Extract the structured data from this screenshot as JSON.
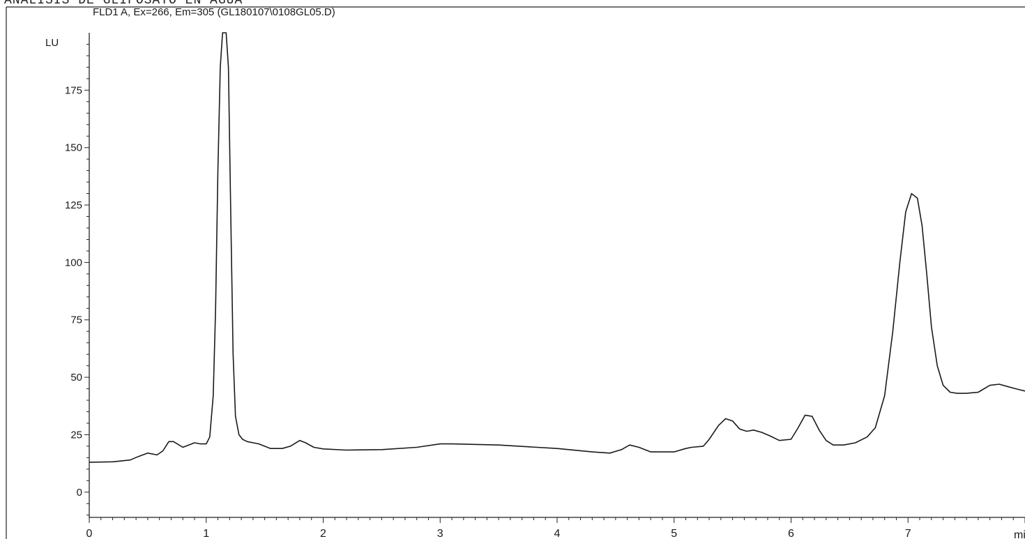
{
  "page_heading": "ANALISIS DE GLIFOSATO EN AGUA",
  "chart_data": {
    "type": "line",
    "title": "FLD1 A, Ex=266, Em=305 (GL180107\\0108GL05.D)",
    "ylabel": "LU",
    "xlabel": "min",
    "xlim": [
      0,
      8.0
    ],
    "ylim": [
      -11,
      200
    ],
    "xticks": [
      0,
      1,
      2,
      3,
      4,
      5,
      6,
      7
    ],
    "yticks": [
      0,
      25,
      50,
      75,
      100,
      125,
      150,
      175
    ],
    "grid": false,
    "series": [
      {
        "color": "#1a1a1a",
        "x": [
          0.0,
          0.2,
          0.35,
          0.42,
          0.5,
          0.58,
          0.63,
          0.68,
          0.72,
          0.8,
          0.85,
          0.9,
          0.95,
          1.0,
          1.03,
          1.06,
          1.08,
          1.1,
          1.12,
          1.14,
          1.17,
          1.19,
          1.21,
          1.23,
          1.25,
          1.28,
          1.31,
          1.35,
          1.45,
          1.55,
          1.65,
          1.72,
          1.8,
          1.85,
          1.92,
          2.0,
          2.2,
          2.5,
          2.8,
          3.0,
          3.1,
          3.5,
          4.0,
          4.3,
          4.45,
          4.55,
          4.62,
          4.7,
          4.8,
          5.0,
          5.1,
          5.15,
          5.25,
          5.3,
          5.38,
          5.44,
          5.5,
          5.56,
          5.62,
          5.68,
          5.75,
          5.82,
          5.9,
          6.0,
          6.06,
          6.12,
          6.18,
          6.24,
          6.3,
          6.36,
          6.45,
          6.55,
          6.65,
          6.72,
          6.8,
          6.87,
          6.93,
          6.98,
          7.03,
          7.08,
          7.12,
          7.16,
          7.2,
          7.25,
          7.3,
          7.36,
          7.42,
          7.5,
          7.6,
          7.7,
          7.78,
          7.85,
          7.92,
          8.0
        ],
        "y": [
          13,
          13.2,
          14,
          15.5,
          17,
          16.2,
          18,
          22,
          22,
          19.5,
          20.5,
          21.5,
          21,
          21,
          24,
          42,
          80,
          140,
          185,
          200,
          200,
          185,
          120,
          60,
          33,
          25,
          23,
          22,
          21,
          19,
          19,
          20,
          22.5,
          21.5,
          19.5,
          18.8,
          18.3,
          18.5,
          19.5,
          21,
          21,
          20.5,
          19,
          17.5,
          17,
          18.5,
          20.5,
          19.5,
          17.5,
          17.5,
          19,
          19.5,
          20,
          23,
          29,
          32,
          31,
          27.5,
          26.5,
          27,
          26,
          24.5,
          22.5,
          23,
          28,
          33.5,
          33,
          27,
          22.5,
          20.5,
          20.5,
          21.5,
          24,
          28,
          42,
          70,
          100,
          122,
          130,
          128,
          116,
          95,
          72,
          55,
          46.5,
          43.5,
          43,
          43,
          43.5,
          46.5,
          47,
          46,
          45,
          44
        ]
      }
    ]
  }
}
